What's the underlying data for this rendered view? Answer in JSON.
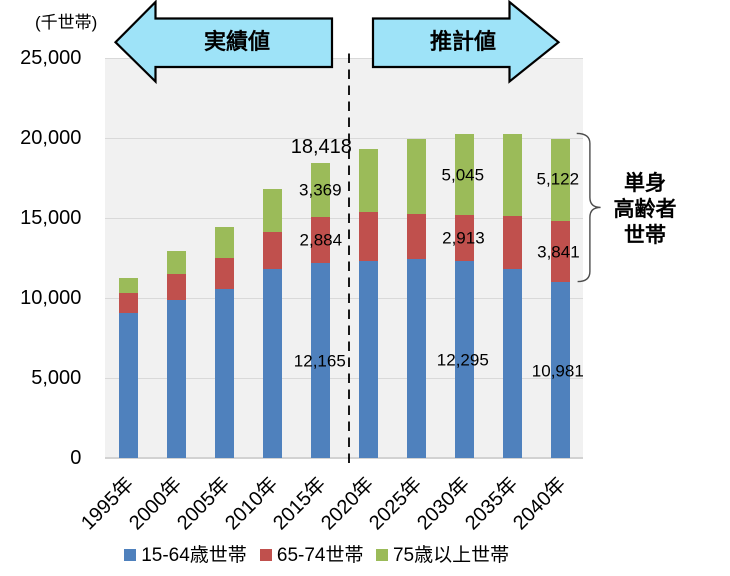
{
  "chart_data": {
    "type": "bar",
    "stacked": true,
    "title": "",
    "unit_label": "(千世帯)",
    "categories": [
      "1995年",
      "2000年",
      "2005年",
      "2010年",
      "2015年",
      "2020年",
      "2025年",
      "2030年",
      "2035年",
      "2040年"
    ],
    "series": [
      {
        "name": "15-64歳世帯",
        "color": "#4F81BD",
        "values": [
          9037,
          9879,
          10592,
          11805,
          12165,
          12317,
          12448,
          12295,
          11815,
          10981
        ]
      },
      {
        "name": "65-74世帯",
        "color": "#C0504D",
        "values": [
          1283,
          1625,
          1880,
          2330,
          2884,
          3027,
          2810,
          2913,
          3318,
          3841
        ]
      },
      {
        "name": "75歳以上世帯",
        "color": "#9BBB59",
        "values": [
          919,
          1407,
          1985,
          2650,
          3369,
          3998,
          4702,
          5045,
          5100,
          5122
        ]
      }
    ],
    "totals": [
      11239,
      12911,
      14457,
      16785,
      18418,
      19342,
      19960,
      20253,
      20233,
      19944
    ],
    "ylim": [
      0,
      25000
    ],
    "ytick_interval": 5000,
    "ytick_labels": [
      "0",
      "5,000",
      "10,000",
      "15,000",
      "20,000",
      "25,000"
    ],
    "grid": true,
    "legend_position": "bottom",
    "value_labels": [
      {
        "text": "18,418",
        "category_index": 4,
        "placement": "total",
        "series_index": -1,
        "dx": 0.5,
        "dy": 0
      },
      {
        "text": "3,369",
        "category_index": 4,
        "placement": "segment",
        "series_index": 2,
        "dx": -0.5,
        "dy": -0.6
      },
      {
        "text": "2,884",
        "category_index": 4,
        "placement": "segment",
        "series_index": 1,
        "dx": 0,
        "dy": 0
      },
      {
        "text": "12,165",
        "category_index": 4,
        "placement": "segment",
        "series_index": 0,
        "dx": -1,
        "dy": 0.5
      },
      {
        "text": "5,045",
        "category_index": 7,
        "placement": "segment",
        "series_index": 2,
        "dx": -2,
        "dy": 0.5
      },
      {
        "text": "2,913",
        "category_index": 7,
        "placement": "segment",
        "series_index": 1,
        "dx": -1.4,
        "dy": -0.4
      },
      {
        "text": "12,295",
        "category_index": 7,
        "placement": "segment",
        "series_index": 0,
        "dx": -2,
        "dy": 0.7
      },
      {
        "text": "5,122",
        "category_index": 9,
        "placement": "segment",
        "series_index": 2,
        "dx": -3,
        "dy": -0.5
      },
      {
        "text": "3,841",
        "category_index": 9,
        "placement": "segment",
        "series_index": 1,
        "dx": -2.4,
        "dy": 0.5
      },
      {
        "text": "10,981",
        "category_index": 9,
        "placement": "segment",
        "series_index": 0,
        "dx": -3,
        "dy": 1
      }
    ]
  },
  "arrows": {
    "left_label": "実績値",
    "right_label": "推計値",
    "fill_color": "#9EE3F8",
    "outline_color": "#000000"
  },
  "bracket_annotation": {
    "lines": [
      "単身",
      "高齢者",
      "世帯"
    ]
  }
}
